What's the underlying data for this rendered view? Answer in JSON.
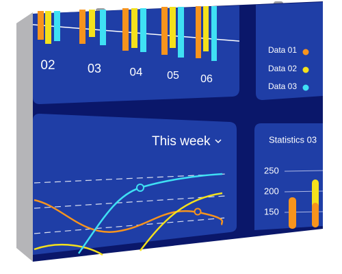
{
  "top_panel": {
    "labels": [
      "02",
      "03",
      "04",
      "05",
      "06"
    ]
  },
  "legend": {
    "items": [
      "Data 01",
      "Data 02",
      "Data 03"
    ]
  },
  "week_panel": {
    "title": "This week"
  },
  "stats_panel": {
    "title": "Statistics 03",
    "ticks": [
      250,
      200,
      150
    ]
  }
}
